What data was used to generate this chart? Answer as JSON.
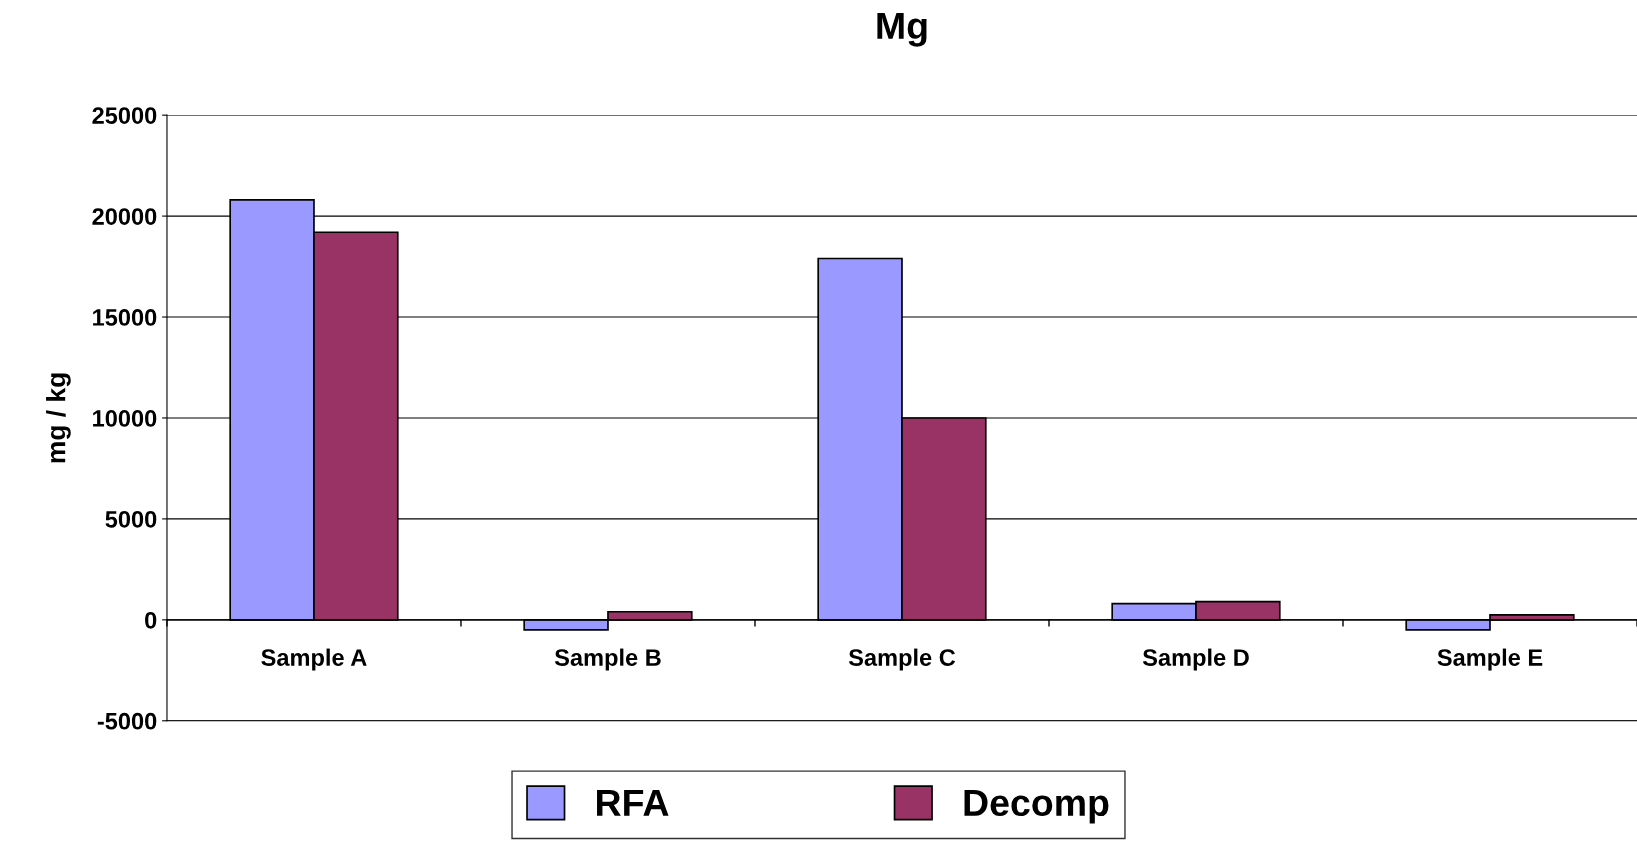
{
  "chart_data": {
    "type": "bar",
    "title": "Mg",
    "ylabel": "mg / kg",
    "categories": [
      "Sample A",
      "Sample B",
      "Sample C",
      "Sample D",
      "Sample E"
    ],
    "series": [
      {
        "name": "RFA",
        "color": "#9999ff",
        "values": [
          20800,
          -500,
          17900,
          800,
          -500
        ]
      },
      {
        "name": "Decomp",
        "color": "#993366",
        "values": [
          19200,
          400,
          10000,
          900,
          250
        ]
      }
    ],
    "ylim": [
      -5000,
      25000
    ],
    "yticks": [
      -5000,
      0,
      5000,
      10000,
      15000,
      20000,
      25000
    ],
    "grid": "y",
    "legend": "bottom"
  }
}
